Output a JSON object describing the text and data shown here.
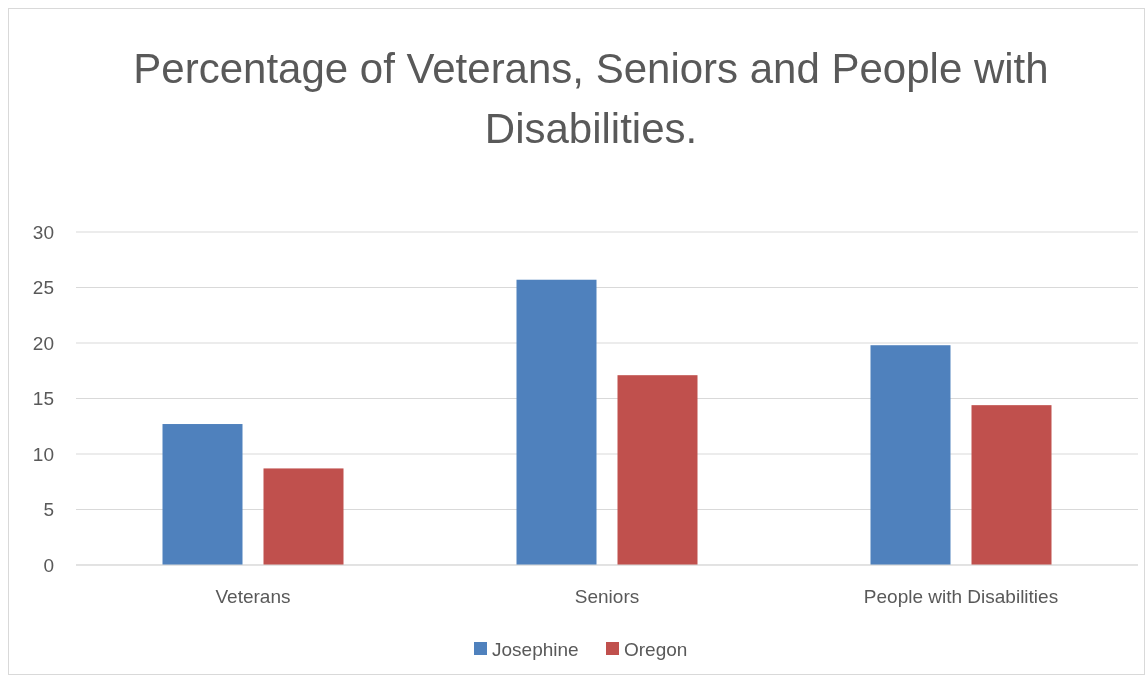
{
  "chart_data": {
    "type": "bar",
    "title": "Percentage of Veterans, Seniors and People with Disabilities.",
    "categories": [
      "Veterans",
      "Seniors",
      "People with Disabilities"
    ],
    "series": [
      {
        "name": "Josephine",
        "color": "#4f81bd",
        "values": [
          12.7,
          25.7,
          19.8
        ]
      },
      {
        "name": "Oregon",
        "color": "#c0504d",
        "values": [
          8.7,
          17.1,
          14.4
        ]
      }
    ],
    "ylim": [
      0,
      30
    ],
    "yticks": [
      0,
      5,
      10,
      15,
      20,
      25,
      30
    ],
    "grid": "y",
    "legend": "bottom"
  }
}
